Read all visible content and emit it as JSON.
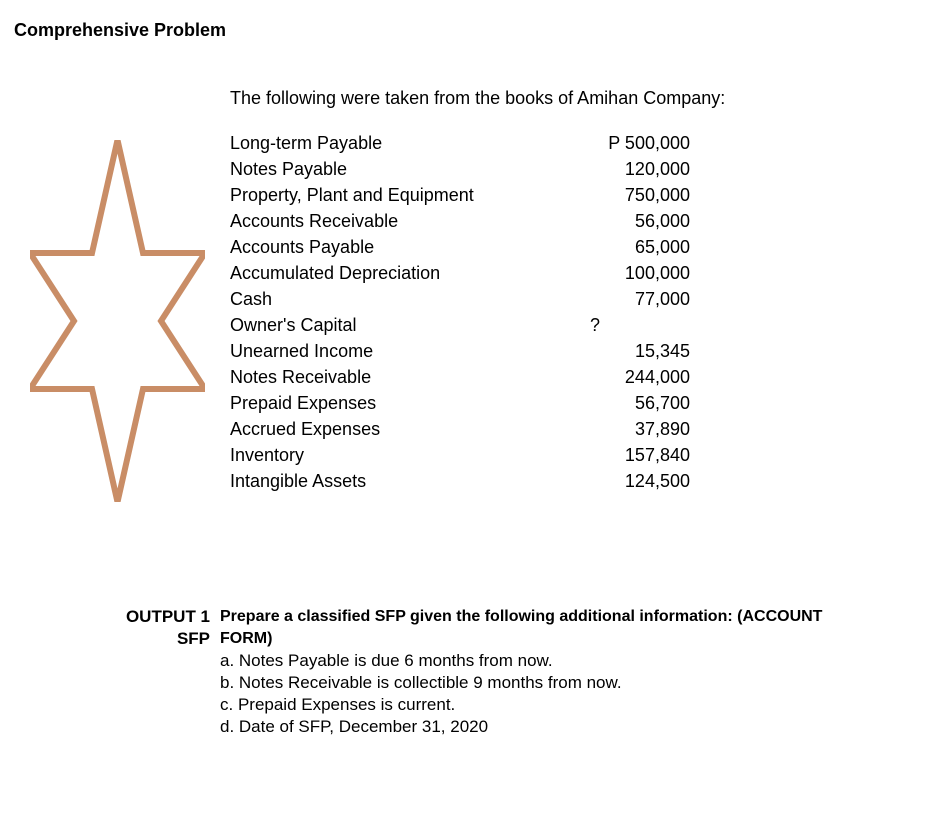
{
  "title": "Comprehensive Problem",
  "intro": "The following were taken from the books of Amihan Company:",
  "star": {
    "stroke": "#c98d66",
    "stroke_width": 6,
    "fill": "none"
  },
  "accounts": [
    {
      "label": "Long-term Payable",
      "value": "P 500,000"
    },
    {
      "label": "Notes Payable",
      "value": "120,000"
    },
    {
      "label": "Property, Plant and Equipment",
      "value": "750,000"
    },
    {
      "label": "Accounts Receivable",
      "value": "56,000"
    },
    {
      "label": "Accounts Payable",
      "value": "65,000"
    },
    {
      "label": "Accumulated Depreciation",
      "value": "100,000"
    },
    {
      "label": "Cash",
      "value": "77,000"
    },
    {
      "label": "Owner's Capital",
      "value": "?                  "
    },
    {
      "label": "Unearned Income",
      "value": "15,345"
    },
    {
      "label": "Notes Receivable",
      "value": "244,000"
    },
    {
      "label": "Prepaid Expenses",
      "value": "56,700"
    },
    {
      "label": "Accrued Expenses",
      "value": "37,890"
    },
    {
      "label": "Inventory",
      "value": "157,840"
    },
    {
      "label": "Intangible Assets",
      "value": "124,500"
    }
  ],
  "output": {
    "heading_line1": "OUTPUT 1",
    "heading_line2": "SFP",
    "prepare": "Prepare a classified SFP given the following additional information:  (ACCOUNT FORM)",
    "items": [
      "a. Notes Payable is due 6 months from now.",
      "b. Notes Receivable is collectible 9 months from now.",
      "c. Prepaid Expenses is current.",
      "d. Date of SFP, December 31, 2020"
    ]
  }
}
